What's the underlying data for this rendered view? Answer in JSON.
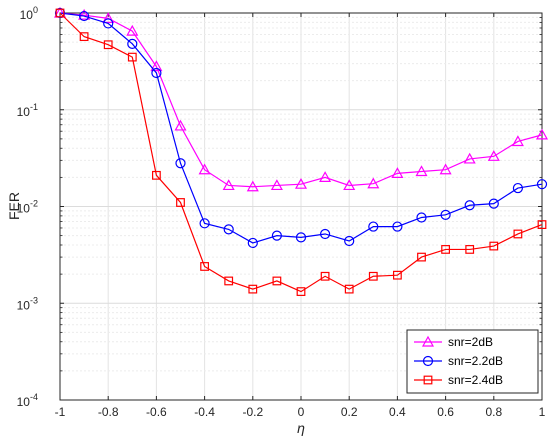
{
  "chart_data": {
    "type": "line",
    "xlabel": "η",
    "ylabel": "FER",
    "xlim": [
      -1,
      1
    ],
    "ylim": [
      0.0001,
      1
    ],
    "yscale": "log",
    "grid": true,
    "minor_grid": true,
    "legend_position": "bottom-right",
    "x": [
      -1,
      -0.9,
      -0.8,
      -0.7,
      -0.6,
      -0.5,
      -0.4,
      -0.3,
      -0.2,
      -0.1,
      0,
      0.1,
      0.2,
      0.3,
      0.4,
      0.5,
      0.6,
      0.7,
      0.8,
      0.9,
      1
    ],
    "x_ticks": [
      {
        "value": -1,
        "label": "-1"
      },
      {
        "value": -0.8,
        "label": "-0.8"
      },
      {
        "value": -0.6,
        "label": "-0.6"
      },
      {
        "value": -0.4,
        "label": "-0.4"
      },
      {
        "value": -0.2,
        "label": "-0.2"
      },
      {
        "value": 0,
        "label": "0"
      },
      {
        "value": 0.2,
        "label": "0.2"
      },
      {
        "value": 0.4,
        "label": "0.4"
      },
      {
        "value": 0.6,
        "label": "0.6"
      },
      {
        "value": 0.8,
        "label": "0.8"
      },
      {
        "value": 1,
        "label": "1"
      }
    ],
    "y_ticks": [
      {
        "value": 0.0001,
        "base": "10",
        "exp": "-4"
      },
      {
        "value": 0.001,
        "base": "10",
        "exp": "-3"
      },
      {
        "value": 0.01,
        "base": "10",
        "exp": "-2"
      },
      {
        "value": 0.1,
        "base": "10",
        "exp": "-1"
      },
      {
        "value": 1,
        "base": "10",
        "exp": "0"
      }
    ],
    "series": [
      {
        "name": "snr=2dB",
        "color": "#ff00ff",
        "marker": "triangle",
        "values": [
          1.0,
          0.95,
          0.88,
          0.65,
          0.28,
          0.068,
          0.024,
          0.0165,
          0.016,
          0.0165,
          0.017,
          0.02,
          0.0165,
          0.0172,
          0.022,
          0.023,
          0.024,
          0.031,
          0.033,
          0.047,
          0.055
        ]
      },
      {
        "name": "snr=2.2dB",
        "color": "#0000ff",
        "marker": "circle",
        "values": [
          1.0,
          0.93,
          0.78,
          0.48,
          0.24,
          0.028,
          0.0067,
          0.0058,
          0.0042,
          0.005,
          0.0048,
          0.0052,
          0.0044,
          0.0062,
          0.0062,
          0.0077,
          0.0082,
          0.0103,
          0.0107,
          0.0155,
          0.017
        ]
      },
      {
        "name": "snr=2.4dB",
        "color": "#ff0000",
        "marker": "square",
        "values": [
          1.0,
          0.57,
          0.47,
          0.35,
          0.021,
          0.011,
          0.0024,
          0.0017,
          0.0014,
          0.0017,
          0.00132,
          0.0019,
          0.0014,
          0.0019,
          0.00195,
          0.003,
          0.0036,
          0.0036,
          0.0039,
          0.0052,
          0.0065
        ]
      }
    ]
  }
}
